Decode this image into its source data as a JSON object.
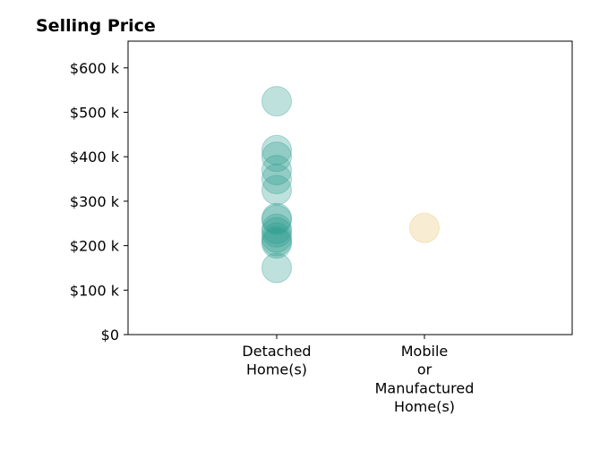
{
  "chart_data": {
    "type": "scatter",
    "title": "Selling Price",
    "xlabel": "",
    "ylabel": "",
    "ylim": [
      0,
      660000
    ],
    "y_ticks": [
      {
        "value": 0,
        "label": "$0"
      },
      {
        "value": 100000,
        "label": "$100 k"
      },
      {
        "value": 200000,
        "label": "$200 k"
      },
      {
        "value": 300000,
        "label": "$300 k"
      },
      {
        "value": 400000,
        "label": "$400 k"
      },
      {
        "value": 500000,
        "label": "$500 k"
      },
      {
        "value": 600000,
        "label": "$600 k"
      }
    ],
    "categories": [
      {
        "lines": [
          "Detached",
          "Home(s)"
        ]
      },
      {
        "lines": [
          "Mobile",
          "or",
          "Manufactured",
          "Home(s)"
        ]
      }
    ],
    "grid": false,
    "legend": "none",
    "series": [
      {
        "category_index": 0,
        "color": "#2a9d8f",
        "values": [
          525000,
          415000,
          400000,
          370000,
          350000,
          325000,
          262000,
          258000,
          238000,
          230000,
          218000,
          210000,
          205000,
          150000
        ]
      },
      {
        "category_index": 1,
        "color": "#e9c46a",
        "values": [
          240000
        ]
      }
    ]
  }
}
